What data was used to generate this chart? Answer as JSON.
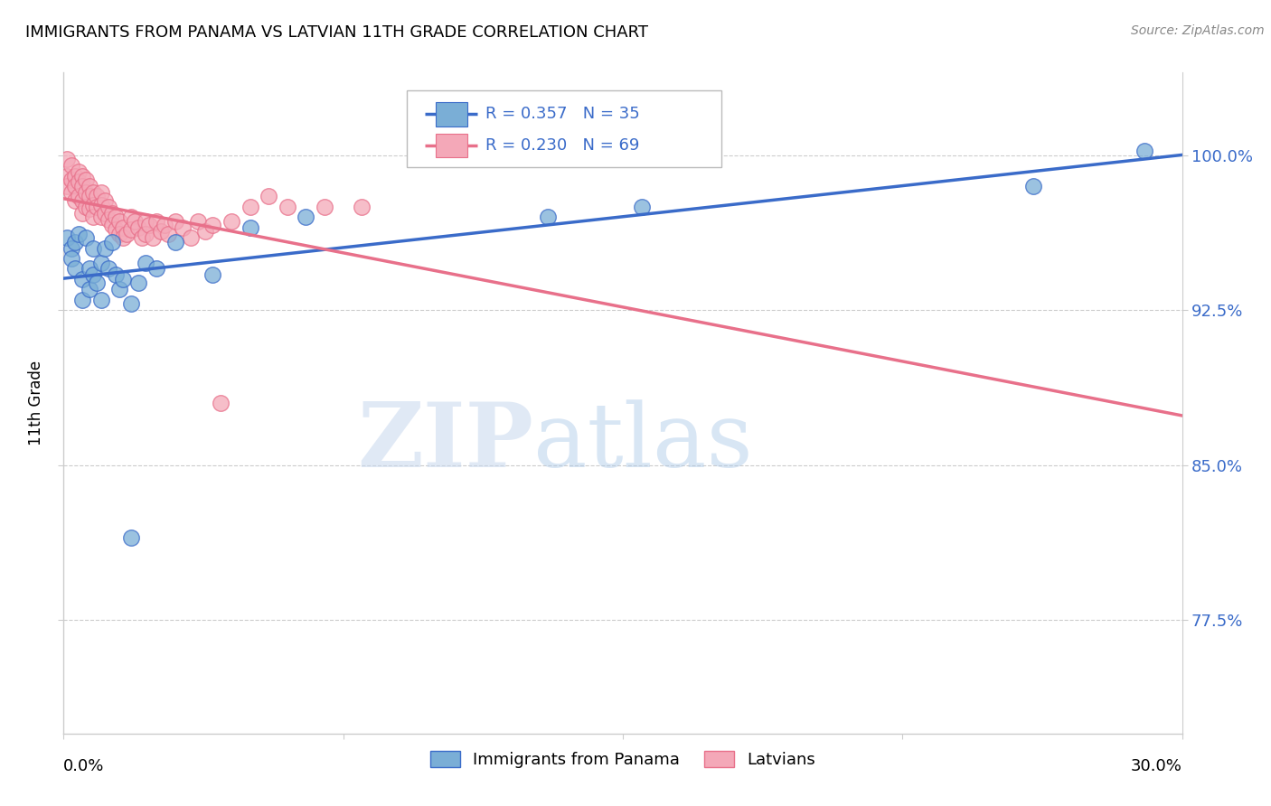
{
  "title": "IMMIGRANTS FROM PANAMA VS LATVIAN 11TH GRADE CORRELATION CHART",
  "source": "Source: ZipAtlas.com",
  "ylabel": "11th Grade",
  "y_ticks": [
    0.775,
    0.85,
    0.925,
    1.0
  ],
  "y_tick_labels": [
    "77.5%",
    "85.0%",
    "92.5%",
    "100.0%"
  ],
  "x_min": 0.0,
  "x_max": 0.3,
  "y_min": 0.72,
  "y_max": 1.04,
  "legend_blue_r": "R = 0.357",
  "legend_blue_n": "N = 35",
  "legend_pink_r": "R = 0.230",
  "legend_pink_n": "N = 69",
  "blue_color": "#7aaed6",
  "pink_color": "#f4a8b8",
  "trendline_blue": "#3a6bc9",
  "trendline_pink": "#e8708a",
  "blue_label": "Immigrants from Panama",
  "pink_label": "Latvians",
  "blue_x": [
    0.001,
    0.002,
    0.002,
    0.003,
    0.003,
    0.004,
    0.005,
    0.005,
    0.006,
    0.007,
    0.007,
    0.008,
    0.008,
    0.009,
    0.01,
    0.01,
    0.011,
    0.012,
    0.013,
    0.014,
    0.015,
    0.016,
    0.018,
    0.02,
    0.022,
    0.025,
    0.03,
    0.04,
    0.05,
    0.065,
    0.13,
    0.155,
    0.26,
    0.29,
    0.018
  ],
  "blue_y": [
    0.96,
    0.955,
    0.95,
    0.945,
    0.958,
    0.962,
    0.94,
    0.93,
    0.96,
    0.945,
    0.935,
    0.955,
    0.942,
    0.938,
    0.948,
    0.93,
    0.955,
    0.945,
    0.958,
    0.942,
    0.935,
    0.94,
    0.928,
    0.938,
    0.948,
    0.945,
    0.958,
    0.942,
    0.965,
    0.97,
    0.97,
    0.975,
    0.985,
    1.002,
    0.815
  ],
  "pink_x": [
    0.001,
    0.001,
    0.001,
    0.002,
    0.002,
    0.002,
    0.003,
    0.003,
    0.003,
    0.004,
    0.004,
    0.004,
    0.005,
    0.005,
    0.005,
    0.005,
    0.006,
    0.006,
    0.006,
    0.007,
    0.007,
    0.007,
    0.008,
    0.008,
    0.008,
    0.009,
    0.009,
    0.01,
    0.01,
    0.01,
    0.011,
    0.011,
    0.012,
    0.012,
    0.013,
    0.013,
    0.014,
    0.014,
    0.015,
    0.015,
    0.016,
    0.016,
    0.017,
    0.018,
    0.018,
    0.019,
    0.02,
    0.021,
    0.022,
    0.022,
    0.023,
    0.024,
    0.025,
    0.026,
    0.027,
    0.028,
    0.03,
    0.032,
    0.034,
    0.036,
    0.038,
    0.04,
    0.042,
    0.045,
    0.05,
    0.055,
    0.06,
    0.07,
    0.08
  ],
  "pink_y": [
    0.998,
    0.99,
    0.985,
    0.995,
    0.988,
    0.982,
    0.99,
    0.985,
    0.978,
    0.992,
    0.987,
    0.98,
    0.99,
    0.985,
    0.978,
    0.972,
    0.988,
    0.982,
    0.975,
    0.985,
    0.98,
    0.974,
    0.982,
    0.976,
    0.97,
    0.98,
    0.975,
    0.982,
    0.976,
    0.97,
    0.978,
    0.972,
    0.975,
    0.969,
    0.972,
    0.966,
    0.97,
    0.964,
    0.968,
    0.962,
    0.965,
    0.96,
    0.962,
    0.97,
    0.964,
    0.968,
    0.965,
    0.96,
    0.968,
    0.962,
    0.966,
    0.96,
    0.968,
    0.963,
    0.966,
    0.962,
    0.968,
    0.965,
    0.96,
    0.968,
    0.963,
    0.966,
    0.88,
    0.968,
    0.975,
    0.98,
    0.975,
    0.975,
    0.975
  ],
  "watermark_zip": "ZIP",
  "watermark_atlas": "atlas",
  "background_color": "#ffffff",
  "grid_color": "#cccccc",
  "tick_color": "#3a6bc9"
}
